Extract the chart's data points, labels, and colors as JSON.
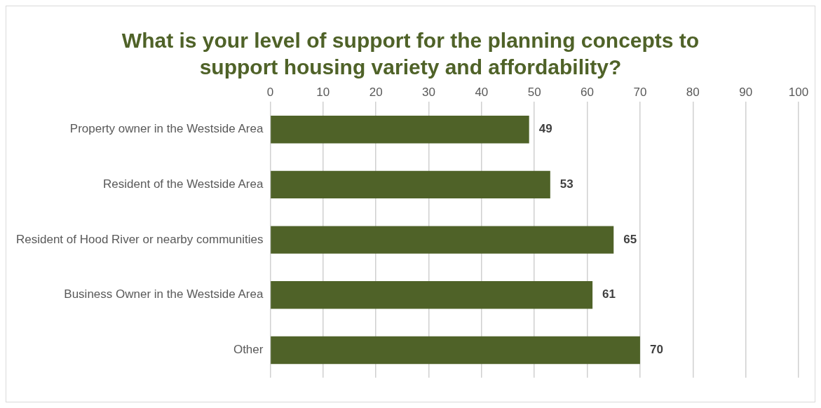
{
  "chart_data": {
    "type": "bar",
    "orientation": "horizontal",
    "title": "What is your level of support for the planning concepts to support housing variety and affordability?",
    "categories": [
      "Property owner in the Westside Area",
      "Resident of the Westside Area",
      "Resident of Hood River or nearby communities",
      "Business Owner in the Westside Area",
      "Other"
    ],
    "values": [
      49,
      53,
      65,
      61,
      70
    ],
    "color": "#4f6228",
    "xlim": [
      0,
      100
    ],
    "xticks": [
      0,
      10,
      20,
      30,
      40,
      50,
      60,
      70,
      80,
      90,
      100
    ],
    "grid": "x",
    "data_labels": true
  }
}
